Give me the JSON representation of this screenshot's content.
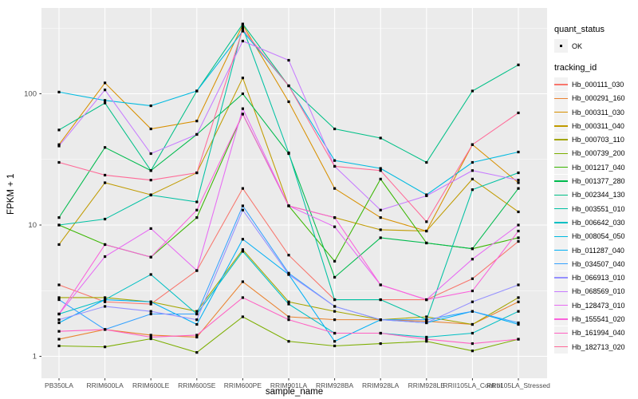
{
  "figure": {
    "background": "#FFFFFF"
  },
  "panel": {
    "background": "#EBEBEB",
    "grid_color": "#FFFFFF",
    "tick_color": "#333333",
    "axis_text_color": "#4D4D4D"
  },
  "chart_data": {
    "type": "line",
    "title": "",
    "xlabel": "sample_name",
    "ylabel": "FPKM + 1",
    "y_scale": "log10",
    "y_ticks": [
      1,
      10,
      100
    ],
    "y_minor_ticks": [
      3.162,
      31.62,
      316.2
    ],
    "y_range": [
      0.68,
      455
    ],
    "grid": "on",
    "marker": {
      "shape": "square",
      "color": "#000000"
    },
    "legend": {
      "position": "right",
      "quant_status_title": "quant_status",
      "ok_label": "OK",
      "tracking_title": "tracking_id"
    },
    "categories": [
      "PB350LA",
      "RRIM600LA",
      "RRIM600LE",
      "RRIM600SE",
      "RRIM600PE",
      "RRIM901LA",
      "RRIM928BA",
      "RRIM928LA",
      "RRIM928LE",
      "RRII105LA_Control",
      "RRII105LA_Stressed"
    ],
    "series": [
      {
        "name": "Hb_000111_030",
        "color": "#F8766D",
        "values": [
          3.5,
          2.6,
          2.5,
          4.5,
          19,
          5.9,
          2.7,
          2.7,
          2.7,
          3.9,
          7.5
        ]
      },
      {
        "name": "Hb_000291_160",
        "color": "#EA8331",
        "values": [
          1.35,
          1.6,
          1.45,
          1.4,
          3.7,
          2.0,
          1.9,
          1.9,
          1.85,
          1.75,
          2.6
        ]
      },
      {
        "name": "Hb_000311_030",
        "color": "#D89000",
        "values": [
          41,
          121,
          54,
          62,
          335,
          87,
          19,
          11.4,
          9.0,
          41,
          21
        ]
      },
      {
        "name": "Hb_000311_040",
        "color": "#C09B00",
        "values": [
          7.1,
          21,
          17,
          25,
          132,
          14,
          11.4,
          9.2,
          9.0,
          22.4,
          12.6
        ]
      },
      {
        "name": "Hb_000703_110",
        "color": "#A3A500",
        "values": [
          2.8,
          2.8,
          2.6,
          2.2,
          6.5,
          2.6,
          2.2,
          1.9,
          2.0,
          1.75,
          2.8
        ]
      },
      {
        "name": "Hb_000739_200",
        "color": "#7CAE00",
        "values": [
          1.2,
          1.18,
          1.36,
          1.07,
          2.0,
          1.3,
          1.2,
          1.25,
          1.3,
          1.1,
          1.35
        ]
      },
      {
        "name": "Hb_001217_040",
        "color": "#39B600",
        "values": [
          10,
          7.1,
          5.7,
          11.4,
          70,
          14,
          5.3,
          22.4,
          7.3,
          6.6,
          8.0
        ]
      },
      {
        "name": "Hb_001377_280",
        "color": "#00BB4E",
        "values": [
          11.4,
          39,
          26,
          49,
          100,
          35,
          4.0,
          8.0,
          7.3,
          6.6,
          19
        ]
      },
      {
        "name": "Hb_002344_130",
        "color": "#00C087",
        "values": [
          53,
          85,
          26,
          105,
          340,
          115,
          54,
          46,
          30,
          105,
          166
        ]
      },
      {
        "name": "Hb_003551_010",
        "color": "#00C1A3",
        "values": [
          10,
          11.1,
          16.9,
          15,
          320,
          35.5,
          2.7,
          2.7,
          1.9,
          18.6,
          25
        ]
      },
      {
        "name": "Hb_006642_030",
        "color": "#00BFC4",
        "values": [
          2.1,
          2.7,
          4.2,
          2.1,
          6.3,
          2.5,
          1.5,
          1.5,
          1.4,
          1.5,
          2.2
        ]
      },
      {
        "name": "Hb_008054_050",
        "color": "#00BAE0",
        "values": [
          103,
          89,
          81,
          105,
          300,
          115,
          31,
          27,
          17,
          30,
          36
        ]
      },
      {
        "name": "Hb_011287_040",
        "color": "#00B0F6",
        "values": [
          1.8,
          2.7,
          2.6,
          1.75,
          7.8,
          4.2,
          1.3,
          1.9,
          1.8,
          2.2,
          1.75
        ]
      },
      {
        "name": "Hb_034507_040",
        "color": "#35A2FF",
        "values": [
          2.7,
          1.6,
          2.1,
          2.1,
          14,
          4.3,
          2.4,
          1.9,
          1.9,
          2.2,
          1.8
        ]
      },
      {
        "name": "Hb_066913_010",
        "color": "#9590FF",
        "values": [
          1.9,
          2.4,
          2.2,
          1.9,
          13,
          4.2,
          2.4,
          1.9,
          1.8,
          2.6,
          3.5
        ]
      },
      {
        "name": "Hb_068569_010",
        "color": "#C77CFF",
        "values": [
          40,
          107,
          35,
          49,
          252,
          180,
          28,
          13,
          16.7,
          26,
          22
        ]
      },
      {
        "name": "Hb_128473_010",
        "color": "#E76BF3",
        "values": [
          2.1,
          5.75,
          9.4,
          4.5,
          77,
          14,
          9.7,
          3.5,
          2.7,
          5.5,
          10
        ]
      },
      {
        "name": "Hb_155541_020",
        "color": "#FA62DB",
        "values": [
          2.1,
          7.1,
          5.7,
          13,
          70,
          14,
          11.4,
          3.5,
          2.7,
          3.15,
          9
        ]
      },
      {
        "name": "Hb_161994_040",
        "color": "#FF61C3",
        "values": [
          1.55,
          1.6,
          1.4,
          1.45,
          2.8,
          1.9,
          1.5,
          1.5,
          1.35,
          1.25,
          1.35
        ]
      },
      {
        "name": "Hb_182713_020",
        "color": "#FF6A98",
        "values": [
          30,
          24,
          22,
          25,
          310,
          115,
          28,
          26,
          10.6,
          41,
          71.5
        ]
      }
    ]
  }
}
